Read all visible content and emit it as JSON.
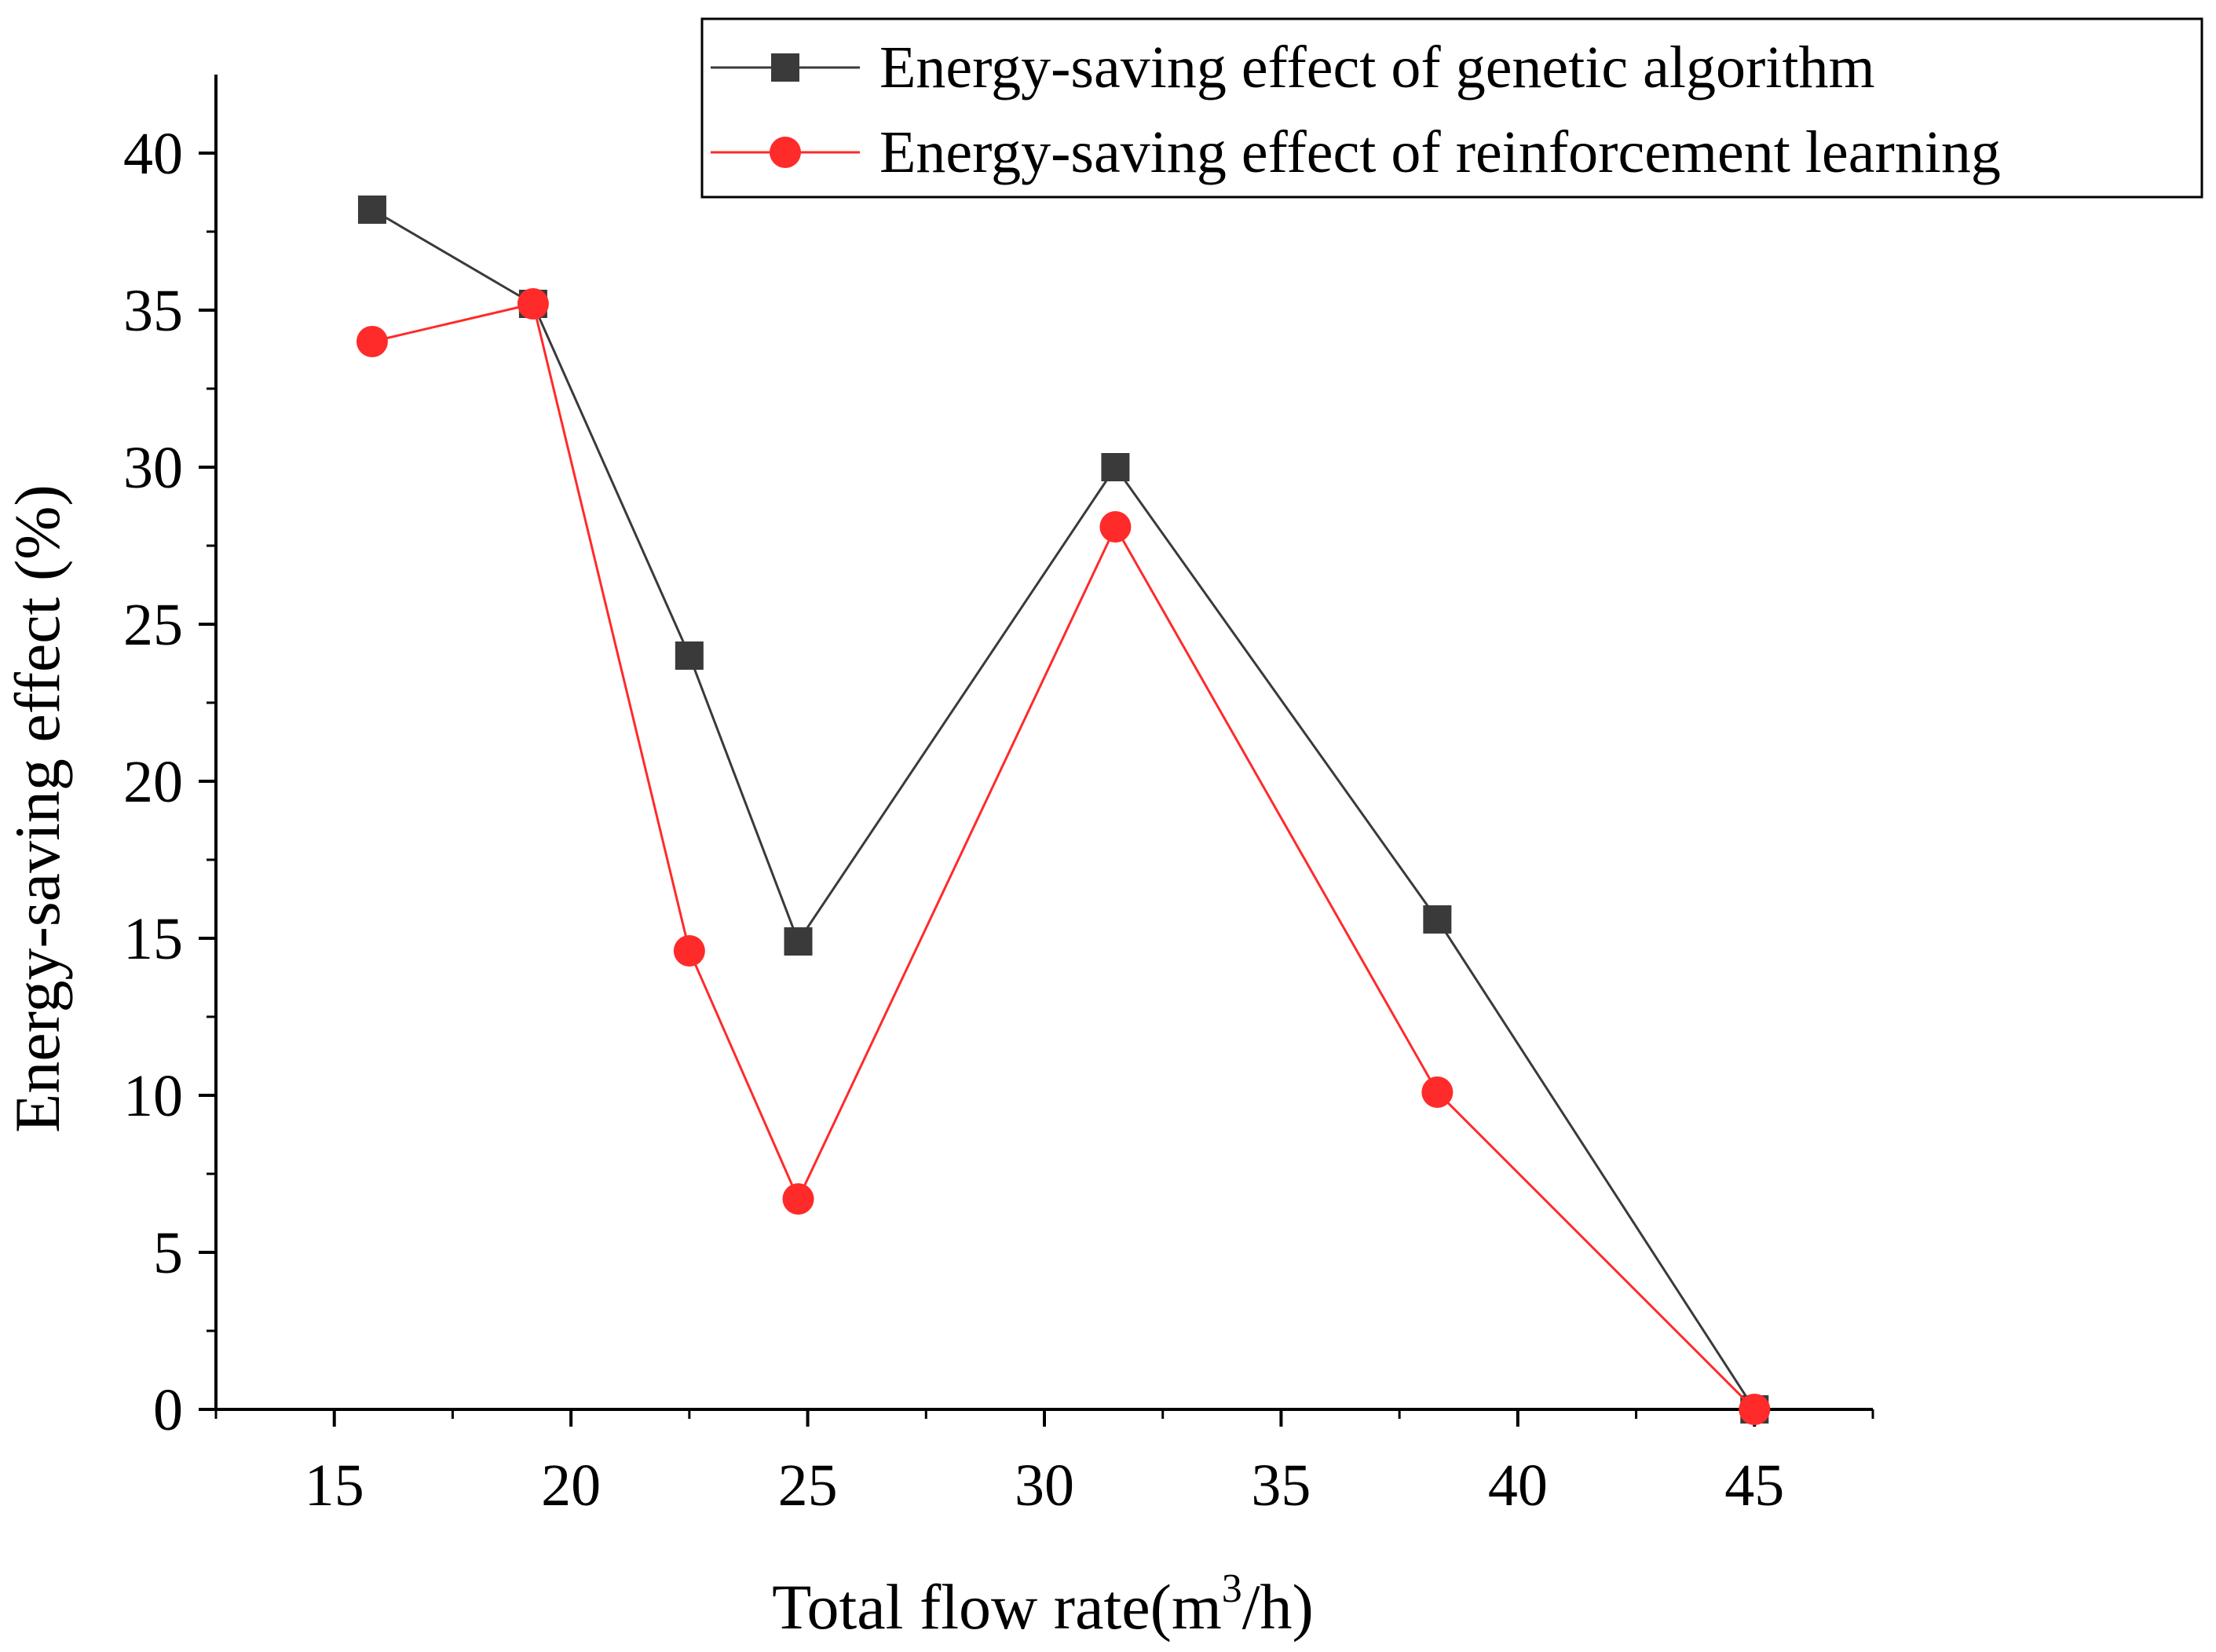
{
  "chart_data": {
    "type": "line",
    "title": "",
    "xlabel": "Total flow rate(m",
    "xlabel_superscript": "3",
    "xlabel_suffix": "/h)",
    "ylabel": "Energy-saving effect (%)",
    "xlim": [
      12.5,
      47.5
    ],
    "ylim": [
      0,
      42.5
    ],
    "x_ticks": [
      15,
      20,
      25,
      30,
      35,
      40,
      45
    ],
    "y_ticks": [
      0,
      5,
      10,
      15,
      20,
      25,
      30,
      35,
      40
    ],
    "x_tick_labels": [
      "15",
      "20",
      "25",
      "30",
      "35",
      "40",
      "45"
    ],
    "y_tick_labels": [
      "0",
      "5",
      "10",
      "15",
      "20",
      "25",
      "30",
      "35",
      "40"
    ],
    "grid": false,
    "legend_position": "top-right",
    "series": [
      {
        "name": "Energy-saving effect of genetic algorithm",
        "color": "#3a3a3a",
        "marker": "square",
        "x": [
          15.8,
          19.2,
          22.5,
          24.8,
          31.5,
          38.3,
          45.0
        ],
        "y": [
          38.2,
          35.2,
          24.0,
          14.9,
          30.0,
          15.6,
          0.0
        ]
      },
      {
        "name": "Energy-saving effect of reinforcement learning",
        "color": "#ff2a2a",
        "marker": "circle",
        "x": [
          15.8,
          19.2,
          22.5,
          24.8,
          31.5,
          38.3,
          45.0
        ],
        "y": [
          34.0,
          35.2,
          14.6,
          6.7,
          28.1,
          10.1,
          0.0
        ]
      }
    ]
  }
}
